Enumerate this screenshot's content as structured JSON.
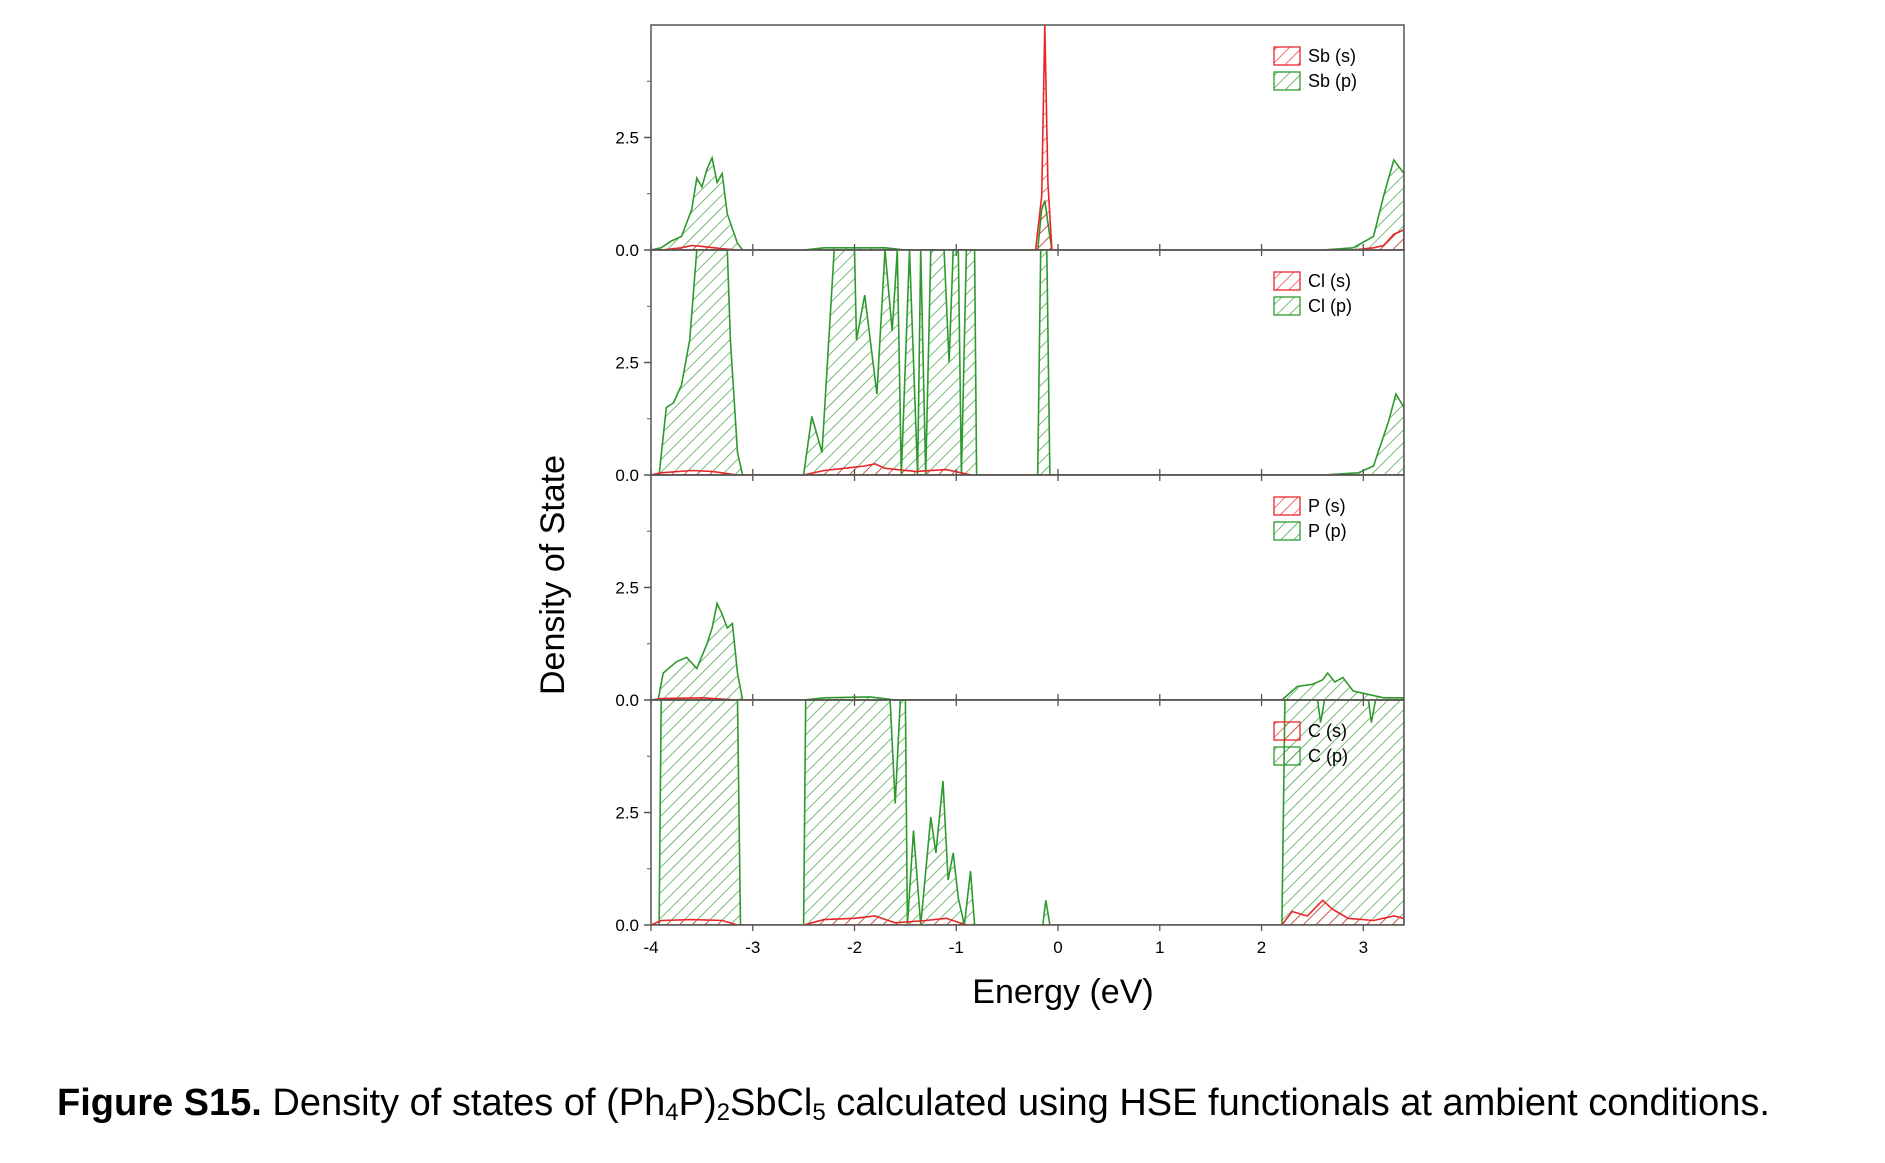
{
  "figure": {
    "ylabel": "Density of State",
    "xlabel": "Energy (eV)"
  },
  "caption": {
    "label": "Figure S15.",
    "pre": " Density of states of (Ph",
    "sub1": "4",
    "mid1": "P)",
    "sub2": "2",
    "mid2": "SbCl",
    "sub3": "5",
    "post": " calculated using HSE functionals at ambient conditions."
  },
  "colors": {
    "s": "#e8262a",
    "p": "#2e9a2e",
    "axis": "#555555"
  },
  "chart_data": {
    "type": "area",
    "xlim": [
      -4,
      3.4
    ],
    "x_ticks": [
      "-4",
      "-3",
      "-2",
      "-1",
      "0",
      "1",
      "2",
      "3"
    ],
    "ylim": [
      0,
      5
    ],
    "y_ticks": [
      "0.0",
      "2.5"
    ],
    "panels": [
      {
        "legend": [
          "Sb (s)",
          "Sb (p)"
        ],
        "series": [
          {
            "name": "Sb (s)",
            "color": "#e8262a",
            "points": [
              [
                -4,
                0
              ],
              [
                -3.9,
                0
              ],
              [
                -3.7,
                0.05
              ],
              [
                -3.6,
                0.1
              ],
              [
                -3.5,
                0.08
              ],
              [
                -3.3,
                0.03
              ],
              [
                -3.15,
                0
              ],
              [
                -0.22,
                0
              ],
              [
                -0.16,
                1.2
              ],
              [
                -0.13,
                5.0
              ],
              [
                -0.1,
                1.5
              ],
              [
                -0.06,
                0
              ],
              [
                2.9,
                0
              ],
              [
                3.1,
                0.05
              ],
              [
                3.2,
                0.1
              ],
              [
                3.3,
                0.35
              ],
              [
                3.4,
                0.45
              ]
            ]
          },
          {
            "name": "Sb (p)",
            "color": "#2e9a2e",
            "points": [
              [
                -4,
                0
              ],
              [
                -3.9,
                0.05
              ],
              [
                -3.8,
                0.2
              ],
              [
                -3.7,
                0.3
              ],
              [
                -3.6,
                0.9
              ],
              [
                -3.55,
                1.6
              ],
              [
                -3.5,
                1.4
              ],
              [
                -3.45,
                1.8
              ],
              [
                -3.4,
                2.05
              ],
              [
                -3.35,
                1.5
              ],
              [
                -3.3,
                1.7
              ],
              [
                -3.25,
                0.8
              ],
              [
                -3.15,
                0.15
              ],
              [
                -3.1,
                0
              ],
              [
                -2.5,
                0
              ],
              [
                -2.3,
                0.05
              ],
              [
                -2.0,
                0.05
              ],
              [
                -1.7,
                0.05
              ],
              [
                -1.5,
                0
              ],
              [
                -0.2,
                0
              ],
              [
                -0.16,
                0.9
              ],
              [
                -0.13,
                1.1
              ],
              [
                -0.1,
                0.6
              ],
              [
                -0.06,
                0
              ],
              [
                2.6,
                0
              ],
              [
                2.9,
                0.05
              ],
              [
                3.1,
                0.3
              ],
              [
                3.2,
                1.2
              ],
              [
                3.3,
                2.0
              ],
              [
                3.4,
                1.7
              ]
            ]
          }
        ]
      },
      {
        "legend": [
          "Cl (s)",
          "Cl (p)"
        ],
        "series": [
          {
            "name": "Cl (s)",
            "color": "#e8262a",
            "points": [
              [
                -4,
                0
              ],
              [
                -3.9,
                0.05
              ],
              [
                -3.6,
                0.1
              ],
              [
                -3.4,
                0.08
              ],
              [
                -3.15,
                0
              ],
              [
                -2.5,
                0
              ],
              [
                -2.3,
                0.1
              ],
              [
                -2.1,
                0.15
              ],
              [
                -1.9,
                0.2
              ],
              [
                -1.8,
                0.25
              ],
              [
                -1.7,
                0.15
              ],
              [
                -1.4,
                0.08
              ],
              [
                -1.1,
                0.12
              ],
              [
                -0.85,
                0
              ],
              [
                3.4,
                0
              ]
            ]
          },
          {
            "name": "Cl (p)",
            "color": "#2e9a2e",
            "points": [
              [
                -4,
                0
              ],
              [
                -3.92,
                0
              ],
              [
                -3.85,
                1.5
              ],
              [
                -3.78,
                1.6
              ],
              [
                -3.7,
                2.0
              ],
              [
                -3.62,
                3.0
              ],
              [
                -3.55,
                5.0
              ],
              [
                -3.25,
                5.0
              ],
              [
                -3.22,
                3.0
              ],
              [
                -3.15,
                0.5
              ],
              [
                -3.1,
                0
              ],
              [
                -2.5,
                0
              ],
              [
                -2.42,
                1.3
              ],
              [
                -2.32,
                0.5
              ],
              [
                -2.2,
                5.0
              ],
              [
                -2.0,
                5.0
              ],
              [
                -1.98,
                3.0
              ],
              [
                -1.9,
                4.0
              ],
              [
                -1.78,
                1.8
              ],
              [
                -1.7,
                5.0
              ],
              [
                -1.63,
                3.2
              ],
              [
                -1.58,
                5.0
              ],
              [
                -1.54,
                0
              ],
              [
                -1.46,
                5.0
              ],
              [
                -1.38,
                0
              ],
              [
                -1.35,
                5.0
              ],
              [
                -1.3,
                0
              ],
              [
                -1.25,
                5.0
              ],
              [
                -1.12,
                5.0
              ],
              [
                -1.07,
                2.5
              ],
              [
                -1.03,
                5.0
              ],
              [
                -0.98,
                5.0
              ],
              [
                -0.95,
                0
              ],
              [
                -0.9,
                5.0
              ],
              [
                -0.82,
                5.0
              ],
              [
                -0.8,
                0
              ],
              [
                -0.2,
                0
              ],
              [
                -0.17,
                5.0
              ],
              [
                -0.11,
                5.0
              ],
              [
                -0.08,
                0
              ],
              [
                2.6,
                0
              ],
              [
                2.95,
                0.05
              ],
              [
                3.1,
                0.2
              ],
              [
                3.25,
                1.2
              ],
              [
                3.32,
                1.8
              ],
              [
                3.4,
                1.5
              ]
            ]
          }
        ]
      },
      {
        "legend": [
          "P (s)",
          "P (p)"
        ],
        "series": [
          {
            "name": "P (s)",
            "color": "#e8262a",
            "points": [
              [
                -4,
                0
              ],
              [
                -3.9,
                0.03
              ],
              [
                -3.5,
                0.05
              ],
              [
                -3.15,
                0
              ],
              [
                3.4,
                0
              ]
            ]
          },
          {
            "name": "P (p)",
            "color": "#2e9a2e",
            "points": [
              [
                -4,
                0
              ],
              [
                -3.93,
                0
              ],
              [
                -3.88,
                0.6
              ],
              [
                -3.75,
                0.85
              ],
              [
                -3.65,
                0.95
              ],
              [
                -3.55,
                0.7
              ],
              [
                -3.45,
                1.25
              ],
              [
                -3.4,
                1.6
              ],
              [
                -3.35,
                2.15
              ],
              [
                -3.3,
                1.9
              ],
              [
                -3.25,
                1.6
              ],
              [
                -3.2,
                1.7
              ],
              [
                -3.15,
                0.6
              ],
              [
                -3.1,
                0
              ],
              [
                -2.5,
                0
              ],
              [
                -2.3,
                0.05
              ],
              [
                -1.85,
                0.07
              ],
              [
                -1.6,
                0
              ],
              [
                2.2,
                0
              ],
              [
                2.35,
                0.3
              ],
              [
                2.5,
                0.35
              ],
              [
                2.6,
                0.45
              ],
              [
                2.65,
                0.6
              ],
              [
                2.72,
                0.4
              ],
              [
                2.8,
                0.5
              ],
              [
                2.9,
                0.2
              ],
              [
                3.0,
                0.15
              ],
              [
                3.2,
                0.05
              ],
              [
                3.4,
                0.05
              ]
            ]
          }
        ]
      },
      {
        "legend": [
          "C (s)",
          "C (p)"
        ],
        "series": [
          {
            "name": "C (s)",
            "color": "#e8262a",
            "points": [
              [
                -4,
                0
              ],
              [
                -3.9,
                0.1
              ],
              [
                -3.6,
                0.12
              ],
              [
                -3.3,
                0.1
              ],
              [
                -3.15,
                0
              ],
              [
                -2.5,
                0
              ],
              [
                -2.3,
                0.12
              ],
              [
                -2.0,
                0.15
              ],
              [
                -1.8,
                0.2
              ],
              [
                -1.6,
                0.05
              ],
              [
                -1.3,
                0.1
              ],
              [
                -1.1,
                0.15
              ],
              [
                -0.9,
                0
              ],
              [
                2.2,
                0
              ],
              [
                2.3,
                0.3
              ],
              [
                2.45,
                0.2
              ],
              [
                2.6,
                0.55
              ],
              [
                2.7,
                0.35
              ],
              [
                2.85,
                0.15
              ],
              [
                3.1,
                0.1
              ],
              [
                3.3,
                0.2
              ],
              [
                3.4,
                0.15
              ]
            ]
          },
          {
            "name": "C (p)",
            "color": "#2e9a2e",
            "points": [
              [
                -4,
                0
              ],
              [
                -3.92,
                0
              ],
              [
                -3.9,
                5.0
              ],
              [
                -3.15,
                5.0
              ],
              [
                -3.12,
                0
              ],
              [
                -2.5,
                0
              ],
              [
                -2.48,
                5.0
              ],
              [
                -1.65,
                5.0
              ],
              [
                -1.6,
                2.7
              ],
              [
                -1.55,
                5.0
              ],
              [
                -1.5,
                5.0
              ],
              [
                -1.48,
                0
              ],
              [
                -1.42,
                2.1
              ],
              [
                -1.35,
                0
              ],
              [
                -1.25,
                2.4
              ],
              [
                -1.2,
                1.6
              ],
              [
                -1.13,
                3.2
              ],
              [
                -1.08,
                1.0
              ],
              [
                -1.03,
                1.6
              ],
              [
                -0.98,
                0.6
              ],
              [
                -0.92,
                0
              ],
              [
                -0.86,
                1.2
              ],
              [
                -0.82,
                0
              ],
              [
                -0.15,
                0
              ],
              [
                -0.12,
                0.55
              ],
              [
                -0.08,
                0
              ],
              [
                2.2,
                0
              ],
              [
                2.23,
                5.0
              ],
              [
                2.55,
                5.0
              ],
              [
                2.58,
                4.5
              ],
              [
                2.62,
                5.0
              ],
              [
                3.05,
                5.0
              ],
              [
                3.08,
                4.5
              ],
              [
                3.12,
                5.0
              ],
              [
                3.4,
                5.0
              ]
            ]
          }
        ]
      }
    ]
  }
}
